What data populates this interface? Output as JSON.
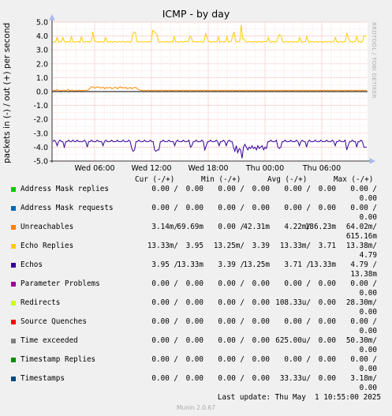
{
  "chart": {
    "title": "ICMP - by day",
    "ylabel": "packets in (-) / out (+) per second",
    "vendor": "RRDTOOL / TOBI OETIKER"
  },
  "chart_data": {
    "type": "line",
    "title": "ICMP - by day",
    "ylabel": "packets in (-) / out (+) per second",
    "ylim": [
      -5.0,
      5.0
    ],
    "yticks": [
      "5.0",
      "4.0",
      "3.0",
      "2.0",
      "1.0",
      "0.0",
      "-1.0",
      "-2.0",
      "-3.0",
      "-4.0",
      "-5.0"
    ],
    "xticks": [
      "Wed 06:00",
      "Wed 12:00",
      "Wed 18:00",
      "Thu 00:00",
      "Thu 06:00"
    ],
    "grid": true,
    "series": [
      {
        "name": "Echo Replies",
        "color": "#ffcc00",
        "values": [
          3.6,
          3.55,
          3.6,
          3.9,
          3.55,
          3.6,
          3.6,
          3.9,
          3.6,
          3.55,
          3.6,
          3.6,
          3.55,
          4.0,
          3.6,
          3.55,
          3.6,
          3.6,
          3.6,
          3.55,
          3.95,
          3.6,
          3.55,
          3.6,
          3.6,
          3.6,
          3.55,
          3.6,
          4.3,
          3.7,
          3.6,
          3.6,
          3.55,
          3.6,
          3.6,
          3.55,
          3.6,
          3.9,
          3.6,
          3.55,
          3.6,
          3.6,
          3.55,
          3.6,
          3.6,
          3.55,
          3.6,
          3.6,
          3.55,
          3.6,
          3.6,
          3.55,
          3.6,
          3.6,
          3.55,
          3.6,
          4.1,
          4.3,
          4.2,
          3.6,
          3.55,
          3.6,
          3.6,
          3.55,
          3.6,
          3.6,
          3.55,
          3.6,
          3.6,
          3.6,
          4.4,
          4.3,
          4.2,
          4.1,
          3.6,
          3.55,
          3.6,
          3.6,
          3.55,
          3.6,
          3.6,
          3.55,
          3.6,
          3.6,
          3.55,
          4.0,
          3.6,
          3.6,
          3.55,
          3.6,
          3.6,
          3.55,
          3.6,
          3.6,
          3.6,
          3.6,
          4.0,
          3.9,
          3.6,
          3.6,
          3.6,
          3.55,
          3.6,
          3.6,
          3.6,
          3.55,
          3.6,
          4.2,
          3.9,
          3.6,
          3.6,
          3.55,
          3.6,
          3.6,
          3.55,
          3.6,
          3.95,
          3.55,
          3.6,
          3.6,
          3.55,
          3.6,
          3.95,
          3.55,
          3.6,
          3.6,
          4.0,
          4.3,
          3.6,
          3.55,
          3.6,
          3.6,
          4.8,
          3.8,
          3.8,
          3.6,
          3.55,
          3.6,
          3.6,
          3.6,
          3.55,
          3.6,
          3.6,
          3.55,
          3.6,
          3.6,
          3.55,
          3.6,
          3.6,
          3.6,
          3.6,
          3.9,
          3.6,
          3.55,
          3.6,
          3.6,
          3.55,
          3.6,
          4.0,
          4.1,
          4.0,
          3.6,
          3.55,
          3.6,
          3.6,
          3.55,
          3.6,
          3.6,
          3.55,
          3.6,
          3.6,
          3.55,
          3.6,
          3.9,
          3.6,
          3.55,
          3.6,
          3.6,
          4.0,
          3.6,
          3.55,
          3.6,
          3.6,
          3.55,
          3.6,
          3.6,
          3.55,
          3.6,
          3.6,
          3.55,
          3.6,
          3.6,
          3.55,
          3.6,
          3.6,
          3.55,
          3.6,
          3.6,
          3.9,
          3.6,
          3.55,
          3.6,
          3.6,
          3.55,
          3.6,
          3.6,
          4.2,
          3.9,
          3.6,
          3.6,
          3.55,
          3.6,
          3.6,
          4.0,
          3.6,
          3.6,
          3.55,
          3.6,
          4.0,
          4.0,
          4.0
        ]
      },
      {
        "name": "Unreachables",
        "color": "#ff8800",
        "values": [
          0.05,
          0.1,
          0.05,
          0.15,
          0.1,
          0.05,
          0.05,
          0.1,
          0.1,
          0.05,
          0.1,
          0.15,
          0.05,
          0.1,
          0.1,
          0.05,
          0.05,
          0.1,
          0.05,
          0.1,
          0.05,
          0.1,
          0.05,
          0.1,
          0.1,
          0.1,
          0.2,
          0.3,
          0.35,
          0.3,
          0.25,
          0.3,
          0.35,
          0.3,
          0.25,
          0.3,
          0.3,
          0.2,
          0.3,
          0.25,
          0.3,
          0.3,
          0.2,
          0.25,
          0.3,
          0.3,
          0.2,
          0.3,
          0.35,
          0.25,
          0.3,
          0.25,
          0.3,
          0.2,
          0.25,
          0.3,
          0.2,
          0.25,
          0.3,
          0.3,
          0.2,
          0.15,
          0.1,
          0.1,
          0.05,
          0.1,
          0.05,
          0.1,
          0.1,
          0.05,
          0.1,
          0.05,
          0.1,
          0.1,
          0.05,
          0.1,
          0.05,
          0.1,
          0.1,
          0.05,
          0.1,
          0.05,
          0.1,
          0.1,
          0.05,
          0.1,
          0.05,
          0.1,
          0.1,
          0.05,
          0.1,
          0.05,
          0.1,
          0.1,
          0.05,
          0.1,
          0.05,
          0.1,
          0.1,
          0.05,
          0.1,
          0.05,
          0.1,
          0.1,
          0.05,
          0.1,
          0.05,
          0.1,
          0.1,
          0.05,
          0.1,
          0.05,
          0.1,
          0.1,
          0.05,
          0.1,
          0.05,
          0.1,
          0.1,
          0.05,
          0.1,
          0.05,
          0.1,
          0.1,
          0.05,
          0.1,
          0.05,
          0.1,
          0.1,
          0.05,
          0.1,
          0.05,
          0.1,
          0.1,
          0.05,
          0.1,
          0.05,
          0.1,
          0.1,
          0.05,
          0.1,
          0.05,
          0.1,
          0.1,
          0.05,
          0.1,
          0.05,
          0.1,
          0.1,
          0.05,
          0.1,
          0.05,
          0.1,
          0.1,
          0.05,
          0.1,
          0.05,
          0.1,
          0.1,
          0.05,
          0.1,
          0.05,
          0.1,
          0.1,
          0.05,
          0.1,
          0.05,
          0.1,
          0.1,
          0.05,
          0.1,
          0.05,
          0.1,
          0.1,
          0.05,
          0.1,
          0.05,
          0.1,
          0.1,
          0.05,
          0.1,
          0.05,
          0.1,
          0.1,
          0.05,
          0.1,
          0.05,
          0.1,
          0.1,
          0.05,
          0.1,
          0.05,
          0.1,
          0.1,
          0.05,
          0.1,
          0.05,
          0.1,
          0.1,
          0.05,
          0.1,
          0.05,
          0.1,
          0.1,
          0.05,
          0.1,
          0.05,
          0.1,
          0.1,
          0.05,
          0.1,
          0.05,
          0.1,
          0.1,
          0.05,
          0.1,
          0.05,
          0.1,
          0.1,
          0.05,
          0.1,
          0.05,
          0.1,
          0.1
        ]
      },
      {
        "name": "Echos",
        "color": "#330099",
        "values": [
          -3.6,
          -3.5,
          -3.6,
          -3.9,
          -3.6,
          -3.5,
          -3.6,
          -3.6,
          -4.0,
          -3.6,
          -3.6,
          -3.5,
          -3.6,
          -3.6,
          -3.5,
          -3.6,
          -3.6,
          -3.5,
          -3.6,
          -3.6,
          -3.6,
          -3.6,
          -3.5,
          -3.6,
          -4.0,
          -3.6,
          -3.6,
          -3.5,
          -3.6,
          -3.6,
          -3.6,
          -3.5,
          -3.6,
          -3.6,
          -3.6,
          -3.9,
          -3.6,
          -3.5,
          -3.6,
          -3.6,
          -3.6,
          -3.5,
          -3.6,
          -3.6,
          -3.6,
          -3.5,
          -3.6,
          -3.6,
          -3.6,
          -3.5,
          -3.6,
          -3.6,
          -3.6,
          -3.5,
          -3.6,
          -4.1,
          -4.3,
          -4.2,
          -3.6,
          -3.6,
          -3.5,
          -3.6,
          -3.6,
          -3.6,
          -3.5,
          -3.6,
          -3.6,
          -3.6,
          -3.5,
          -3.6,
          -3.6,
          -4.2,
          -4.3,
          -4.2,
          -4.2,
          -3.6,
          -3.6,
          -3.5,
          -3.6,
          -3.6,
          -3.6,
          -3.5,
          -3.6,
          -3.6,
          -3.6,
          -3.9,
          -3.6,
          -3.5,
          -3.6,
          -3.6,
          -3.6,
          -3.5,
          -3.6,
          -3.6,
          -3.6,
          -3.5,
          -4.0,
          -3.9,
          -3.6,
          -3.6,
          -3.5,
          -3.6,
          -3.6,
          -3.6,
          -3.5,
          -3.6,
          -4.2,
          -3.9,
          -3.6,
          -3.6,
          -3.5,
          -3.6,
          -3.6,
          -3.6,
          -3.5,
          -3.6,
          -3.9,
          -3.6,
          -3.6,
          -3.5,
          -3.6,
          -3.9,
          -3.6,
          -3.5,
          -3.6,
          -3.6,
          -4.0,
          -4.3,
          -3.9,
          -4.4,
          -4.1,
          -4.2,
          -4.8,
          -4.0,
          -3.8,
          -4.0,
          -4.2,
          -4.0,
          -4.1,
          -3.9,
          -4.1,
          -4.0,
          -4.2,
          -3.9,
          -4.1,
          -4.0,
          -3.9,
          -4.2,
          -4.0,
          -4.1,
          -3.6,
          -3.6,
          -3.5,
          -3.6,
          -3.6,
          -3.6,
          -3.5,
          -4.0,
          -4.1,
          -4.0,
          -3.6,
          -3.6,
          -3.5,
          -3.6,
          -3.6,
          -3.6,
          -3.5,
          -3.6,
          -3.6,
          -3.6,
          -3.5,
          -3.6,
          -3.9,
          -3.6,
          -3.5,
          -3.6,
          -3.6,
          -4.0,
          -3.6,
          -3.5,
          -3.6,
          -3.6,
          -3.6,
          -3.5,
          -3.6,
          -3.6,
          -3.6,
          -3.5,
          -3.6,
          -3.6,
          -3.6,
          -3.5,
          -3.6,
          -3.6,
          -3.6,
          -3.5,
          -3.6,
          -3.9,
          -3.6,
          -3.6,
          -3.5,
          -3.6,
          -3.6,
          -3.6,
          -3.5,
          -4.2,
          -3.9,
          -3.6,
          -3.6,
          -3.5,
          -3.6,
          -3.6,
          -4.0,
          -3.6,
          -3.6,
          -3.5,
          -3.6,
          -4.0,
          -4.0,
          -4.0
        ]
      },
      {
        "name": "Timestamps",
        "color": "#0f4c6b",
        "values": [
          0.0,
          0.0
        ]
      },
      {
        "name": "Time exceeded",
        "color": "#888888",
        "values": [
          0.0,
          0.0
        ]
      }
    ]
  },
  "legend": {
    "headers": {
      "cur": "Cur (-/+)",
      "min": "Min (-/+)",
      "avg": "Avg (-/+)",
      "max": "Max (-/+)"
    },
    "rows": [
      {
        "name": "Address Mask replies",
        "color": "#00cc00",
        "cur": "0.00 /",
        "cur2": "0.00",
        "min": "0.00 /",
        "min2": "0.00",
        "avg": "0.00 /",
        "avg2": "0.00",
        "max": "0.00 /",
        "max2": "0.00"
      },
      {
        "name": "Address Mask requests",
        "color": "#0066b3",
        "cur": "0.00 /",
        "cur2": "0.00",
        "min": "0.00 /",
        "min2": "0.00",
        "avg": "0.00 /",
        "avg2": "0.00",
        "max": "0.00 /",
        "max2": "0.00"
      },
      {
        "name": "Unreachables",
        "color": "#ff8000",
        "cur": "3.14m/",
        "cur2": "69.69m",
        "min": "0.00 /",
        "min2": "42.31m",
        "avg": "4.22m/",
        "avg2": "186.23m",
        "max": "64.02m/",
        "max2": "615.16m"
      },
      {
        "name": "Echo Replies",
        "color": "#ffcc00",
        "cur": "13.33m/",
        "cur2": "3.95",
        "min": "13.25m/",
        "min2": "3.39",
        "avg": "13.33m/",
        "avg2": "3.71",
        "max": "13.38m/",
        "max2": "4.79"
      },
      {
        "name": "Echos",
        "color": "#330099",
        "cur": "3.95 /",
        "cur2": "13.33m",
        "min": "3.39 /",
        "min2": "13.25m",
        "avg": "3.71 /",
        "avg2": "13.33m",
        "max": "4.79 /",
        "max2": "13.38m"
      },
      {
        "name": "Parameter Problems",
        "color": "#990099",
        "cur": "0.00 /",
        "cur2": "0.00",
        "min": "0.00 /",
        "min2": "0.00",
        "avg": "0.00 /",
        "avg2": "0.00",
        "max": "0.00 /",
        "max2": "0.00"
      },
      {
        "name": "Redirects",
        "color": "#ccff00",
        "cur": "0.00 /",
        "cur2": "0.00",
        "min": "0.00 /",
        "min2": "0.00",
        "avg": "108.33u/",
        "avg2": "0.00",
        "max": "28.30m/",
        "max2": "0.00"
      },
      {
        "name": "Source Quenches",
        "color": "#ff0000",
        "cur": "0.00 /",
        "cur2": "0.00",
        "min": "0.00 /",
        "min2": "0.00",
        "avg": "0.00 /",
        "avg2": "0.00",
        "max": "0.00 /",
        "max2": "0.00"
      },
      {
        "name": "Time exceeded",
        "color": "#808080",
        "cur": "0.00 /",
        "cur2": "0.00",
        "min": "0.00 /",
        "min2": "0.00",
        "avg": "625.00u/",
        "avg2": "0.00",
        "max": "50.30m/",
        "max2": "0.00"
      },
      {
        "name": "Timestamp Replies",
        "color": "#008f00",
        "cur": "0.00 /",
        "cur2": "0.00",
        "min": "0.00 /",
        "min2": "0.00",
        "avg": "0.00 /",
        "avg2": "0.00",
        "max": "0.00 /",
        "max2": "0.00"
      },
      {
        "name": "Timestamps",
        "color": "#00487d",
        "cur": "0.00 /",
        "cur2": "0.00",
        "min": "0.00 /",
        "min2": "0.00",
        "avg": "33.33u/",
        "avg2": "0.00",
        "max": "3.18m/",
        "max2": "0.00"
      }
    ]
  },
  "last_update": "Last update: Thu May  1 10:55:00 2025",
  "footer": "Munin 2.0.67"
}
